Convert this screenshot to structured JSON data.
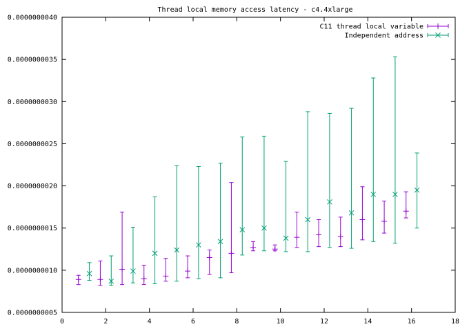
{
  "chart_data": {
    "type": "scatter",
    "title": "Thread local memory access latency - c4.4xlarge",
    "xlabel": "",
    "ylabel": "",
    "xlim": [
      0,
      18
    ],
    "ylim": [
      5e-10,
      4e-09
    ],
    "x_ticks": [
      {
        "value": 0,
        "label": "0"
      },
      {
        "value": 2,
        "label": "2"
      },
      {
        "value": 4,
        "label": "4"
      },
      {
        "value": 6,
        "label": "6"
      },
      {
        "value": 8,
        "label": "8"
      },
      {
        "value": 10,
        "label": "10"
      },
      {
        "value": 12,
        "label": "12"
      },
      {
        "value": 14,
        "label": "14"
      },
      {
        "value": 16,
        "label": "16"
      },
      {
        "value": 18,
        "label": "18"
      }
    ],
    "y_ticks": [
      {
        "value": 5e-10,
        "label": "0.0000000005"
      },
      {
        "value": 1e-09,
        "label": "0.0000000010"
      },
      {
        "value": 1.5e-09,
        "label": "0.0000000015"
      },
      {
        "value": 2e-09,
        "label": "0.0000000020"
      },
      {
        "value": 2.5e-09,
        "label": "0.0000000025"
      },
      {
        "value": 3e-09,
        "label": "0.0000000030"
      },
      {
        "value": 3.5e-09,
        "label": "0.0000000035"
      },
      {
        "value": 4e-09,
        "label": "0.0000000040"
      }
    ],
    "grid": false,
    "legend_position": "top-right",
    "series": [
      {
        "name": "C11 thread local variable",
        "color": "#9400d3",
        "marker": "plus",
        "points": [
          {
            "x": 0.75,
            "y": 8.9e-10,
            "ylow": 8.3e-10,
            "yhigh": 9.4e-10
          },
          {
            "x": 1.75,
            "y": 8.9e-10,
            "ylow": 8.2e-10,
            "yhigh": 1.11e-09
          },
          {
            "x": 2.75,
            "y": 1.01e-09,
            "ylow": 8.3e-10,
            "yhigh": 1.69e-09
          },
          {
            "x": 3.75,
            "y": 9e-10,
            "ylow": 8.3e-10,
            "yhigh": 1.06e-09
          },
          {
            "x": 4.75,
            "y": 9.3e-10,
            "ylow": 8.7e-10,
            "yhigh": 1.14e-09
          },
          {
            "x": 5.75,
            "y": 9.9e-10,
            "ylow": 9.1e-10,
            "yhigh": 1.17e-09
          },
          {
            "x": 6.75,
            "y": 1.15e-09,
            "ylow": 9.5e-10,
            "yhigh": 1.24e-09
          },
          {
            "x": 7.75,
            "y": 1.2e-09,
            "ylow": 9.7e-10,
            "yhigh": 2.04e-09
          },
          {
            "x": 8.75,
            "y": 1.27e-09,
            "ylow": 1.23e-09,
            "yhigh": 1.34e-09
          },
          {
            "x": 9.75,
            "y": 1.25e-09,
            "ylow": 1.23e-09,
            "yhigh": 1.3e-09
          },
          {
            "x": 10.75,
            "y": 1.39e-09,
            "ylow": 1.27e-09,
            "yhigh": 1.69e-09
          },
          {
            "x": 11.75,
            "y": 1.42e-09,
            "ylow": 1.28e-09,
            "yhigh": 1.6e-09
          },
          {
            "x": 12.75,
            "y": 1.4e-09,
            "ylow": 1.28e-09,
            "yhigh": 1.63e-09
          },
          {
            "x": 13.75,
            "y": 1.6e-09,
            "ylow": 1.36e-09,
            "yhigh": 1.99e-09
          },
          {
            "x": 14.75,
            "y": 1.58e-09,
            "ylow": 1.44e-09,
            "yhigh": 1.82e-09
          },
          {
            "x": 15.75,
            "y": 1.7e-09,
            "ylow": 1.62e-09,
            "yhigh": 1.93e-09
          }
        ]
      },
      {
        "name": "Independent address",
        "color": "#009e73",
        "marker": "cross",
        "points": [
          {
            "x": 1.25,
            "y": 9.6e-10,
            "ylow": 8.8e-10,
            "yhigh": 1.09e-09
          },
          {
            "x": 2.25,
            "y": 8.7e-10,
            "ylow": 8.2e-10,
            "yhigh": 1.17e-09
          },
          {
            "x": 3.25,
            "y": 9.9e-10,
            "ylow": 8.5e-10,
            "yhigh": 1.51e-09
          },
          {
            "x": 4.25,
            "y": 1.2e-09,
            "ylow": 8.4e-10,
            "yhigh": 1.87e-09
          },
          {
            "x": 5.25,
            "y": 1.24e-09,
            "ylow": 8.7e-10,
            "yhigh": 2.24e-09
          },
          {
            "x": 6.25,
            "y": 1.3e-09,
            "ylow": 9e-10,
            "yhigh": 2.23e-09
          },
          {
            "x": 7.25,
            "y": 1.34e-09,
            "ylow": 9.1e-10,
            "yhigh": 2.27e-09
          },
          {
            "x": 8.25,
            "y": 1.48e-09,
            "ylow": 1.18e-09,
            "yhigh": 2.58e-09
          },
          {
            "x": 9.25,
            "y": 1.5e-09,
            "ylow": 1.23e-09,
            "yhigh": 2.59e-09
          },
          {
            "x": 10.25,
            "y": 1.38e-09,
            "ylow": 1.22e-09,
            "yhigh": 2.29e-09
          },
          {
            "x": 11.25,
            "y": 1.6e-09,
            "ylow": 1.22e-09,
            "yhigh": 2.88e-09
          },
          {
            "x": 12.25,
            "y": 1.81e-09,
            "ylow": 1.27e-09,
            "yhigh": 2.86e-09
          },
          {
            "x": 13.25,
            "y": 1.68e-09,
            "ylow": 1.26e-09,
            "yhigh": 2.92e-09
          },
          {
            "x": 14.25,
            "y": 1.9e-09,
            "ylow": 1.34e-09,
            "yhigh": 3.28e-09
          },
          {
            "x": 15.25,
            "y": 1.9e-09,
            "ylow": 1.32e-09,
            "yhigh": 3.53e-09
          },
          {
            "x": 16.25,
            "y": 1.95e-09,
            "ylow": 1.5e-09,
            "yhigh": 2.39e-09
          }
        ]
      }
    ]
  }
}
